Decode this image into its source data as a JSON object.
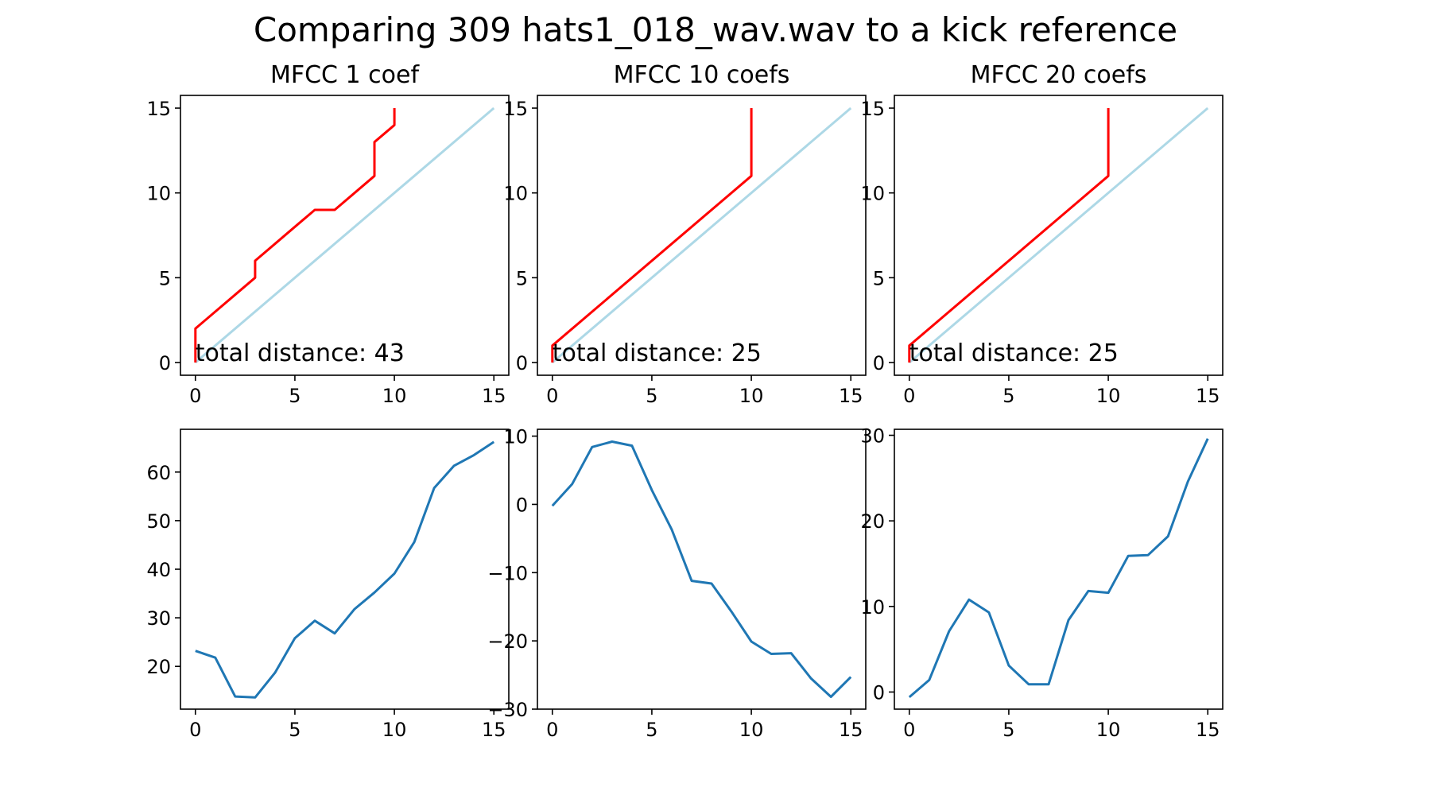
{
  "title": "Comparing 309 hats1_018_wav.wav to a kick reference",
  "chart_data": [
    {
      "type": "line",
      "title": "MFCC 1 coef",
      "xlim": [
        -0.75,
        15.75
      ],
      "ylim": [
        -0.75,
        15.75
      ],
      "xticks": [
        0,
        5,
        10,
        15
      ],
      "yticks": [
        0,
        5,
        10,
        15
      ],
      "xtick_labels": [
        "0",
        "5",
        "10",
        "15"
      ],
      "ytick_labels": [
        "0",
        "5",
        "10",
        "15"
      ],
      "annotation": "total distance: 43",
      "series": [
        {
          "color": "#add8e6",
          "x": [
            0,
            15
          ],
          "y": [
            0,
            15
          ]
        },
        {
          "color": "#ff0000",
          "x": [
            0,
            0,
            1,
            2,
            3,
            3,
            4,
            5,
            6,
            7,
            8,
            9,
            9,
            10,
            10
          ],
          "y": [
            0,
            2,
            3,
            4,
            5,
            6,
            7,
            8,
            9,
            9,
            10,
            11,
            13,
            14,
            15
          ]
        }
      ]
    },
    {
      "type": "line",
      "title": "MFCC 10 coefs",
      "xlim": [
        -0.75,
        15.75
      ],
      "ylim": [
        -0.75,
        15.75
      ],
      "xticks": [
        0,
        5,
        10,
        15
      ],
      "yticks": [
        0,
        5,
        10,
        15
      ],
      "xtick_labels": [
        "0",
        "5",
        "10",
        "15"
      ],
      "ytick_labels": [
        "0",
        "5",
        "10",
        "15"
      ],
      "annotation": "total distance: 25",
      "series": [
        {
          "color": "#add8e6",
          "x": [
            0,
            15
          ],
          "y": [
            0,
            15
          ]
        },
        {
          "color": "#ff0000",
          "x": [
            0,
            0,
            10,
            10
          ],
          "y": [
            0,
            1,
            11,
            15
          ]
        }
      ]
    },
    {
      "type": "line",
      "title": "MFCC 20 coefs",
      "xlim": [
        -0.75,
        15.75
      ],
      "ylim": [
        -0.75,
        15.75
      ],
      "xticks": [
        0,
        5,
        10,
        15
      ],
      "yticks": [
        0,
        5,
        10,
        15
      ],
      "xtick_labels": [
        "0",
        "5",
        "10",
        "15"
      ],
      "ytick_labels": [
        "0",
        "5",
        "10",
        "15"
      ],
      "annotation": "total distance: 25",
      "series": [
        {
          "color": "#add8e6",
          "x": [
            0,
            15
          ],
          "y": [
            0,
            15
          ]
        },
        {
          "color": "#ff0000",
          "x": [
            0,
            0,
            10,
            10
          ],
          "y": [
            0,
            1,
            11,
            15
          ]
        }
      ]
    },
    {
      "type": "line",
      "title": "",
      "xlim": [
        -0.75,
        15.75
      ],
      "ylim": [
        11.2,
        68.8
      ],
      "xticks": [
        0,
        5,
        10,
        15
      ],
      "yticks": [
        20,
        30,
        40,
        50,
        60
      ],
      "xtick_labels": [
        "0",
        "5",
        "10",
        "15"
      ],
      "ytick_labels": [
        "20",
        "30",
        "40",
        "50",
        "60"
      ],
      "annotation": "",
      "series": [
        {
          "color": "#1f77b4",
          "x": [
            0,
            1,
            2,
            3,
            4,
            5,
            6,
            7,
            8,
            9,
            10,
            11,
            12,
            13,
            14,
            15
          ],
          "y": [
            23.2,
            21.8,
            13.8,
            13.6,
            18.7,
            25.8,
            29.4,
            26.8,
            31.8,
            35.2,
            39.1,
            45.6,
            56.7,
            61.3,
            63.5,
            66.2
          ]
        }
      ]
    },
    {
      "type": "line",
      "title": "",
      "xlim": [
        -0.75,
        15.75
      ],
      "ylim": [
        -30,
        11
      ],
      "xticks": [
        0,
        5,
        10,
        15
      ],
      "yticks": [
        10,
        0,
        -10,
        -20,
        -30
      ],
      "xtick_labels": [
        "0",
        "5",
        "10",
        "15"
      ],
      "ytick_labels": [
        "10",
        "0",
        "−10",
        "−20",
        "−30"
      ],
      "annotation": "",
      "series": [
        {
          "color": "#1f77b4",
          "x": [
            0,
            1,
            2,
            3,
            4,
            5,
            6,
            7,
            8,
            9,
            10,
            11,
            12,
            13,
            14,
            15
          ],
          "y": [
            -0.2,
            3.0,
            8.4,
            9.2,
            8.6,
            2.1,
            -3.7,
            -11.2,
            -11.6,
            -15.7,
            -20.1,
            -21.9,
            -21.8,
            -25.5,
            -28.2,
            -25.3
          ]
        }
      ]
    },
    {
      "type": "line",
      "title": "",
      "xlim": [
        -0.75,
        15.75
      ],
      "ylim": [
        -2.0,
        30.7
      ],
      "xticks": [
        0,
        5,
        10,
        15
      ],
      "yticks": [
        0,
        10,
        20,
        30
      ],
      "xtick_labels": [
        "0",
        "5",
        "10",
        "15"
      ],
      "ytick_labels": [
        "0",
        "10",
        "20",
        "30"
      ],
      "annotation": "",
      "series": [
        {
          "color": "#1f77b4",
          "x": [
            0,
            1,
            2,
            3,
            4,
            5,
            6,
            7,
            8,
            9,
            10,
            11,
            12,
            13,
            14,
            15
          ],
          "y": [
            -0.6,
            1.4,
            7.1,
            10.8,
            9.3,
            3.1,
            0.9,
            0.9,
            8.4,
            11.8,
            11.6,
            15.9,
            16.0,
            18.2,
            24.6,
            29.6
          ]
        }
      ]
    }
  ]
}
